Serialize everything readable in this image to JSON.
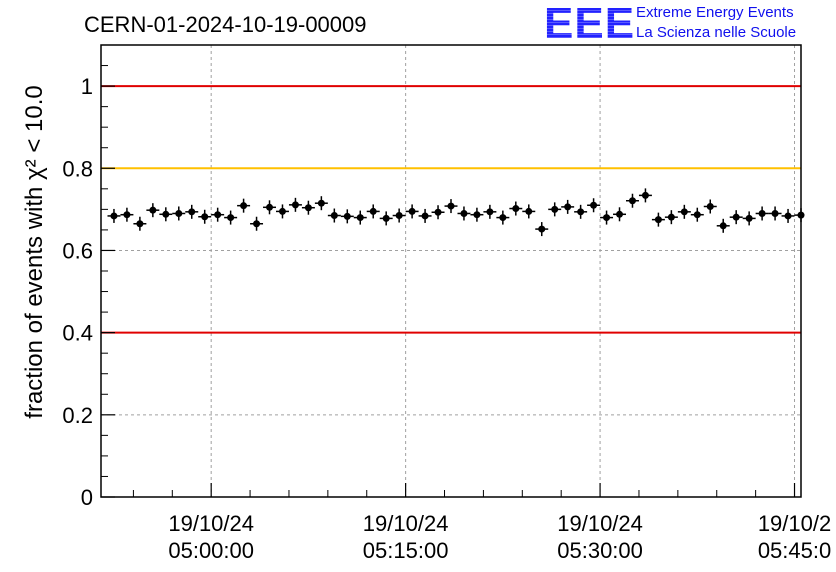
{
  "header": {
    "title": "CERN-01-2024-10-19-00009",
    "logo_mark": "EEE",
    "logo_line1": "Extreme Energy Events",
    "logo_line2": "La Scienza nelle Scuole"
  },
  "chart_data": {
    "type": "scatter",
    "title": "CERN-01-2024-10-19-00009",
    "ylabel": "fraction of events with χ² < 10.0",
    "xlabel": "",
    "ylim": [
      0,
      1.1
    ],
    "xlim_minutes": [
      291.5,
      345.5
    ],
    "grid": true,
    "x_ticks": [
      {
        "minutes": 300,
        "date": "19/10/24",
        "time": "05:00:00"
      },
      {
        "minutes": 315,
        "date": "19/10/24",
        "time": "05:15:00"
      },
      {
        "minutes": 330,
        "date": "19/10/24",
        "time": "05:30:00"
      },
      {
        "minutes": 345,
        "date": "19/10/2",
        "time": "05:45:0"
      }
    ],
    "y_ticks": [
      {
        "value": 0,
        "label": "0"
      },
      {
        "value": 0.2,
        "label": "0.2"
      },
      {
        "value": 0.4,
        "label": "0.4"
      },
      {
        "value": 0.6,
        "label": "0.6"
      },
      {
        "value": 0.8,
        "label": "0.8"
      },
      {
        "value": 1,
        "label": "1"
      }
    ],
    "reference_lines": [
      {
        "value": 1.0,
        "color": "#e00000"
      },
      {
        "value": 0.8,
        "color": "#ffc000"
      },
      {
        "value": 0.4,
        "color": "#e00000"
      }
    ],
    "series": [
      {
        "color": "#000000",
        "x_minutes": [
          292.5,
          293.5,
          294.5,
          295.5,
          296.5,
          297.5,
          298.5,
          299.5,
          300.5,
          301.5,
          302.5,
          303.5,
          304.5,
          305.5,
          306.5,
          307.5,
          308.5,
          309.5,
          310.5,
          311.5,
          312.5,
          313.5,
          314.5,
          315.5,
          316.5,
          317.5,
          318.5,
          319.5,
          320.5,
          321.5,
          322.5,
          323.5,
          324.5,
          325.5,
          326.5,
          327.5,
          328.5,
          329.5,
          330.5,
          331.5,
          332.5,
          333.5,
          334.5,
          335.5,
          336.5,
          337.5,
          338.5,
          339.5,
          340.5,
          341.5,
          342.5,
          343.5,
          344.5,
          345.5
        ],
        "y": [
          0.684,
          0.687,
          0.665,
          0.698,
          0.688,
          0.69,
          0.694,
          0.682,
          0.687,
          0.68,
          0.709,
          0.665,
          0.705,
          0.695,
          0.711,
          0.704,
          0.715,
          0.685,
          0.683,
          0.68,
          0.695,
          0.678,
          0.685,
          0.695,
          0.684,
          0.693,
          0.708,
          0.69,
          0.687,
          0.694,
          0.68,
          0.702,
          0.695,
          0.652,
          0.7,
          0.706,
          0.694,
          0.71,
          0.68,
          0.688,
          0.721,
          0.734,
          0.675,
          0.681,
          0.694,
          0.687,
          0.707,
          0.66,
          0.681,
          0.678,
          0.69,
          0.69,
          0.684,
          0.686
        ]
      }
    ]
  }
}
